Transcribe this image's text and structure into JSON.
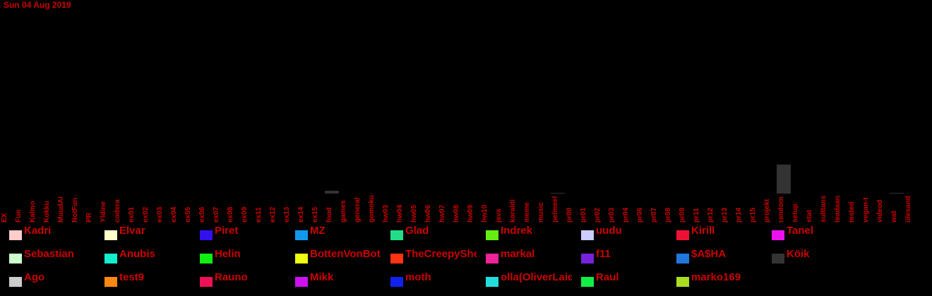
{
  "header": {
    "date": "Sun 04 Aug 2019"
  },
  "chart_data": {
    "type": "bar",
    "categories": [
      "EX",
      "Fun",
      "Kalmo",
      "Kokku",
      "MuudAi",
      "NotFun",
      "PR",
      "Yldine",
      "codera",
      "ex01",
      "ex02",
      "ex03",
      "ex04",
      "ex05",
      "ex06",
      "ex07",
      "ex08",
      "ex09",
      "ex11",
      "ex12",
      "ex13",
      "ex14",
      "ex15",
      "food",
      "games",
      "general",
      "gomoku",
      "hw03",
      "hw04",
      "hw05",
      "hw06",
      "hw07",
      "hw08",
      "hw09",
      "hw10",
      "java",
      "koraldi",
      "meme",
      "music",
      "pelmeel",
      "pr00",
      "pr01",
      "pr02",
      "pr03",
      "pr04",
      "pr06",
      "pr07",
      "pr08",
      "pr09",
      "pr11",
      "pr12",
      "pr13",
      "pr14",
      "pr15",
      "projekt",
      "random",
      "setup",
      "stat",
      "sulttans",
      "teadaan",
      "tested",
      "vegan-t",
      "videod",
      "wat",
      "ülesand"
    ],
    "series_color": "#333333",
    "values": [
      0,
      0,
      0,
      0,
      0,
      0,
      0,
      0,
      0,
      0,
      0,
      0,
      0,
      0,
      0,
      0,
      0,
      0,
      0,
      0,
      0,
      0,
      0,
      4,
      0,
      0,
      0,
      0,
      0,
      0,
      0,
      0,
      0,
      0,
      0,
      0,
      0,
      0,
      0,
      1,
      0,
      0,
      0,
      0,
      0,
      0,
      0,
      0,
      0,
      0,
      0,
      0,
      0,
      0,
      0,
      41,
      0,
      0,
      0,
      0,
      0,
      0,
      0,
      1,
      0
    ],
    "ylim": [
      0,
      270
    ]
  },
  "legend": [
    {
      "name": "Kadri",
      "color": "#ffcccc"
    },
    {
      "name": "Elvar",
      "color": "#ffffcc"
    },
    {
      "name": "Piret",
      "color": "#3311ee"
    },
    {
      "name": "MZ",
      "color": "#1199ee"
    },
    {
      "name": "Glad",
      "color": "#22dd88"
    },
    {
      "name": "Indrek",
      "color": "#66ee11"
    },
    {
      "name": "uudu",
      "color": "#ccccff"
    },
    {
      "name": "Kirill",
      "color": "#ee1133"
    },
    {
      "name": "Tanel",
      "color": "#ee11ee"
    },
    {
      "name": "Sebastian",
      "color": "#ccffcc"
    },
    {
      "name": "Anubis",
      "color": "#11eecc"
    },
    {
      "name": "Helin",
      "color": "#11ee11"
    },
    {
      "name": "BottenVonBot",
      "color": "#eeff11"
    },
    {
      "name": "TheCreepyShe",
      "color": "#ff3311"
    },
    {
      "name": "markal",
      "color": "#ee2299"
    },
    {
      "name": "f11",
      "color": "#7722dd"
    },
    {
      "name": "$A$HA",
      "color": "#2277dd"
    },
    {
      "name": "Köik",
      "color": "#333333"
    },
    {
      "name": "Ago",
      "color": "#cccccc"
    },
    {
      "name": "test9",
      "color": "#ff8811"
    },
    {
      "name": "Rauno",
      "color": "#ee1155"
    },
    {
      "name": "Mikk",
      "color": "#cc11ee"
    },
    {
      "name": "moth",
      "color": "#1122ee"
    },
    {
      "name": "olla(OliverLaid)",
      "color": "#22dddd"
    },
    {
      "name": "Raul",
      "color": "#11ee44"
    },
    {
      "name": "marko169",
      "color": "#aadd22"
    }
  ]
}
